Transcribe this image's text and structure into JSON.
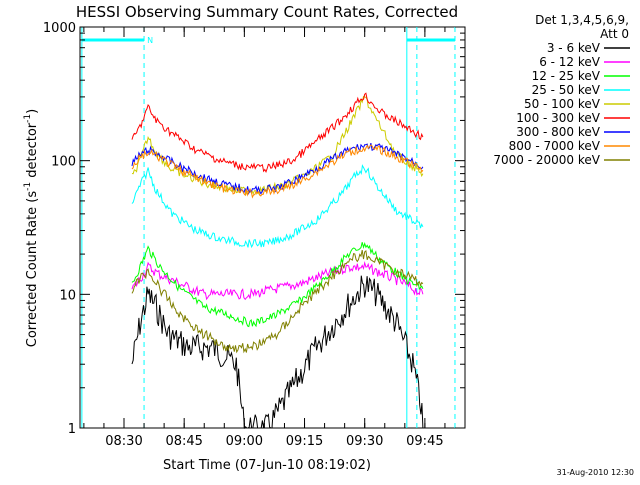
{
  "chart_data": {
    "type": "line",
    "title": "HESSI Observing Summary Count Rates, Corrected",
    "xlabel": "Start Time (07-Jun-10 08:19:02)",
    "ylabel_main": "Corrected Count Rate (s",
    "ylabel_sup1": "-1",
    "ylabel_mid": " detector",
    "ylabel_sup2": "-1",
    "ylabel_end": ")",
    "yscale": "log",
    "xlim": [
      "08:19:02",
      "09:55:00"
    ],
    "ylim": [
      1,
      1000
    ],
    "x_ticks": [
      "08:30",
      "08:45",
      "09:00",
      "09:15",
      "09:30",
      "09:45"
    ],
    "y_ticks": [
      "1",
      "10",
      "100",
      "1000"
    ],
    "legend_header": [
      "Det 1,3,4,5,6,9,",
      "Att 0"
    ],
    "legend_position": "right",
    "footer_stamp": "31-Aug-2010 12:30",
    "flags": {
      "bars": [
        {
          "x_start": "08:19:30",
          "x_end": "08:35:00",
          "y": 800
        },
        {
          "x_start": "09:40:30",
          "x_end": "09:52:30",
          "y": 800
        }
      ],
      "letter": "N",
      "letter_x": "08:36:30",
      "solid_lines": [
        "08:19:30",
        "09:40:30"
      ],
      "dashed_lines": [
        "08:35:00",
        "09:43:00",
        "09:52:30"
      ],
      "color": "#00ffff"
    },
    "series": [
      {
        "name": "3 - 6 keV",
        "color": "#000000",
        "points": [
          [
            "08:32:00",
            3
          ],
          [
            "08:34:00",
            6
          ],
          [
            "08:36:00",
            10
          ],
          [
            "08:38:00",
            8
          ],
          [
            "08:41:00",
            5
          ],
          [
            "08:46:00",
            4
          ],
          [
            "08:52:00",
            4
          ],
          [
            "08:58:00",
            3
          ],
          [
            "09:00:00",
            1
          ],
          [
            "09:06:00",
            1
          ],
          [
            "09:12:00",
            2
          ],
          [
            "09:18:00",
            4
          ],
          [
            "09:24:00",
            7
          ],
          [
            "09:28:00",
            10
          ],
          [
            "09:30:00",
            12
          ],
          [
            "09:33:00",
            10
          ],
          [
            "09:38:00",
            6
          ],
          [
            "09:42:00",
            3
          ],
          [
            "09:44:00",
            1.5
          ],
          [
            "09:44:30",
            1
          ]
        ]
      },
      {
        "name": "6 - 12 keV",
        "color": "#ff00ff",
        "points": [
          [
            "08:32:00",
            11
          ],
          [
            "08:34:00",
            13
          ],
          [
            "08:36:00",
            16
          ],
          [
            "08:39:00",
            14
          ],
          [
            "08:44:00",
            12
          ],
          [
            "08:50:00",
            10
          ],
          [
            "08:56:00",
            10
          ],
          [
            "09:02:00",
            10
          ],
          [
            "09:08:00",
            11
          ],
          [
            "09:14:00",
            12
          ],
          [
            "09:20:00",
            14
          ],
          [
            "09:26:00",
            16
          ],
          [
            "09:30:00",
            16
          ],
          [
            "09:35:00",
            14
          ],
          [
            "09:40:00",
            12
          ],
          [
            "09:44:30",
            10
          ]
        ]
      },
      {
        "name": "12 - 25 keV",
        "color": "#00ff00",
        "points": [
          [
            "08:32:00",
            12
          ],
          [
            "08:34:00",
            16
          ],
          [
            "08:36:00",
            22
          ],
          [
            "08:39:00",
            16
          ],
          [
            "08:44:00",
            11
          ],
          [
            "08:50:00",
            8
          ],
          [
            "08:56:00",
            7
          ],
          [
            "09:02:00",
            6
          ],
          [
            "09:08:00",
            7
          ],
          [
            "09:14:00",
            9
          ],
          [
            "09:20:00",
            13
          ],
          [
            "09:26:00",
            20
          ],
          [
            "09:30:00",
            24
          ],
          [
            "09:34:00",
            18
          ],
          [
            "09:40:00",
            13
          ],
          [
            "09:44:30",
            11
          ]
        ]
      },
      {
        "name": "25 - 50 keV",
        "color": "#00ffff",
        "points": [
          [
            "08:32:00",
            48
          ],
          [
            "08:34:00",
            65
          ],
          [
            "08:36:00",
            85
          ],
          [
            "08:38:00",
            60
          ],
          [
            "08:42:00",
            40
          ],
          [
            "08:48:00",
            30
          ],
          [
            "08:54:00",
            26
          ],
          [
            "09:00:00",
            24
          ],
          [
            "09:06:00",
            24
          ],
          [
            "09:12:00",
            28
          ],
          [
            "09:18:00",
            36
          ],
          [
            "09:24:00",
            55
          ],
          [
            "09:28:00",
            80
          ],
          [
            "09:30:00",
            90
          ],
          [
            "09:33:00",
            65
          ],
          [
            "09:38:00",
            42
          ],
          [
            "09:44:30",
            32
          ]
        ]
      },
      {
        "name": "50 - 100 keV",
        "color": "#cccc00",
        "points": [
          [
            "08:32:00",
            75
          ],
          [
            "08:34:00",
            100
          ],
          [
            "08:36:00",
            150
          ],
          [
            "08:38:00",
            115
          ],
          [
            "08:42:00",
            85
          ],
          [
            "08:50:00",
            68
          ],
          [
            "08:58:00",
            60
          ],
          [
            "09:04:00",
            60
          ],
          [
            "09:10:00",
            65
          ],
          [
            "09:16:00",
            80
          ],
          [
            "09:22:00",
            110
          ],
          [
            "09:26:00",
            180
          ],
          [
            "09:30:00",
            300
          ],
          [
            "09:33:00",
            200
          ],
          [
            "09:38:00",
            110
          ],
          [
            "09:44:30",
            80
          ]
        ]
      },
      {
        "name": "100 - 300 keV",
        "color": "#ff0000",
        "points": [
          [
            "08:32:00",
            140
          ],
          [
            "08:34:00",
            180
          ],
          [
            "08:36:00",
            250
          ],
          [
            "08:38:00",
            200
          ],
          [
            "08:42:00",
            160
          ],
          [
            "08:48:00",
            120
          ],
          [
            "08:54:00",
            100
          ],
          [
            "09:00:00",
            90
          ],
          [
            "09:06:00",
            88
          ],
          [
            "09:12:00",
            100
          ],
          [
            "09:18:00",
            140
          ],
          [
            "09:24:00",
            200
          ],
          [
            "09:28:00",
            270
          ],
          [
            "09:30:00",
            310
          ],
          [
            "09:34:00",
            230
          ],
          [
            "09:40:00",
            180
          ],
          [
            "09:44:30",
            150
          ]
        ]
      },
      {
        "name": "300 - 800 keV",
        "color": "#0000ff",
        "points": [
          [
            "08:32:00",
            95
          ],
          [
            "08:34:00",
            110
          ],
          [
            "08:36:00",
            120
          ],
          [
            "08:39:00",
            110
          ],
          [
            "08:44:00",
            90
          ],
          [
            "08:50:00",
            75
          ],
          [
            "08:56:00",
            65
          ],
          [
            "09:02:00",
            60
          ],
          [
            "09:08:00",
            62
          ],
          [
            "09:14:00",
            75
          ],
          [
            "09:20:00",
            95
          ],
          [
            "09:26:00",
            120
          ],
          [
            "09:30:00",
            130
          ],
          [
            "09:34:00",
            125
          ],
          [
            "09:40:00",
            105
          ],
          [
            "09:44:30",
            90
          ]
        ]
      },
      {
        "name": "800 - 7000 keV",
        "color": "#ff8800",
        "points": [
          [
            "08:32:00",
            90
          ],
          [
            "08:34:00",
            105
          ],
          [
            "08:36:00",
            115
          ],
          [
            "08:39:00",
            105
          ],
          [
            "08:44:00",
            85
          ],
          [
            "08:50:00",
            70
          ],
          [
            "08:56:00",
            60
          ],
          [
            "09:02:00",
            57
          ],
          [
            "09:08:00",
            59
          ],
          [
            "09:14:00",
            70
          ],
          [
            "09:20:00",
            90
          ],
          [
            "09:26:00",
            115
          ],
          [
            "09:30:00",
            125
          ],
          [
            "09:34:00",
            120
          ],
          [
            "09:40:00",
            100
          ],
          [
            "09:44:30",
            85
          ]
        ]
      },
      {
        "name": "7000 - 20000 keV",
        "color": "#808000",
        "points": [
          [
            "08:32:00",
            11
          ],
          [
            "08:34:00",
            13
          ],
          [
            "08:36:00",
            15
          ],
          [
            "08:39:00",
            11
          ],
          [
            "08:44:00",
            7
          ],
          [
            "08:50:00",
            5
          ],
          [
            "08:56:00",
            4
          ],
          [
            "09:02:00",
            4
          ],
          [
            "09:08:00",
            5
          ],
          [
            "09:14:00",
            8
          ],
          [
            "09:20:00",
            12
          ],
          [
            "09:26:00",
            18
          ],
          [
            "09:30:00",
            20
          ],
          [
            "09:34:00",
            17
          ],
          [
            "09:40:00",
            14
          ],
          [
            "09:44:30",
            12
          ]
        ]
      }
    ]
  }
}
